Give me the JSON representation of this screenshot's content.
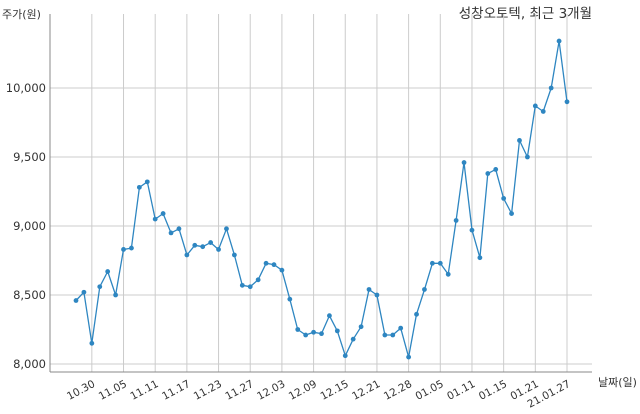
{
  "chart_data": {
    "type": "line",
    "title": "성창오토텍, 최근 3개월",
    "xlabel": "날짜(일)",
    "ylabel": "주가(원)",
    "ylim": [
      8000,
      10000
    ],
    "yticks": [
      8000,
      8500,
      9000,
      9500,
      10000
    ],
    "ytick_labels": [
      "8,000",
      "8,500",
      "9,000",
      "9,500",
      "10,000"
    ],
    "grid": true,
    "xtick_labels": [
      "10.30",
      "11.05",
      "11.11",
      "11.17",
      "11.23",
      "11.27",
      "12.03",
      "12.09",
      "12.15",
      "12.21",
      "12.28",
      "01.05",
      "01.11",
      "01.15",
      "01.21",
      "21.01.27"
    ],
    "series": [
      {
        "color": "#2e86c1",
        "values": [
          8460,
          8520,
          8150,
          8560,
          8670,
          8500,
          8830,
          8840,
          9280,
          9320,
          9050,
          9090,
          8950,
          8980,
          8790,
          8860,
          8850,
          8880,
          8830,
          8980,
          8790,
          8570,
          8560,
          8610,
          8730,
          8720,
          8680,
          8470,
          8250,
          8210,
          8230,
          8220,
          8350,
          8240,
          8060,
          8180,
          8270,
          8540,
          8500,
          8210,
          8210,
          8260,
          8050,
          8360,
          8540,
          8730,
          8730,
          8650,
          9040,
          9460,
          8970,
          8770,
          9380,
          9410,
          9200,
          9090,
          9620,
          9500,
          9870,
          9830,
          10000,
          10340,
          9900
        ]
      }
    ]
  }
}
